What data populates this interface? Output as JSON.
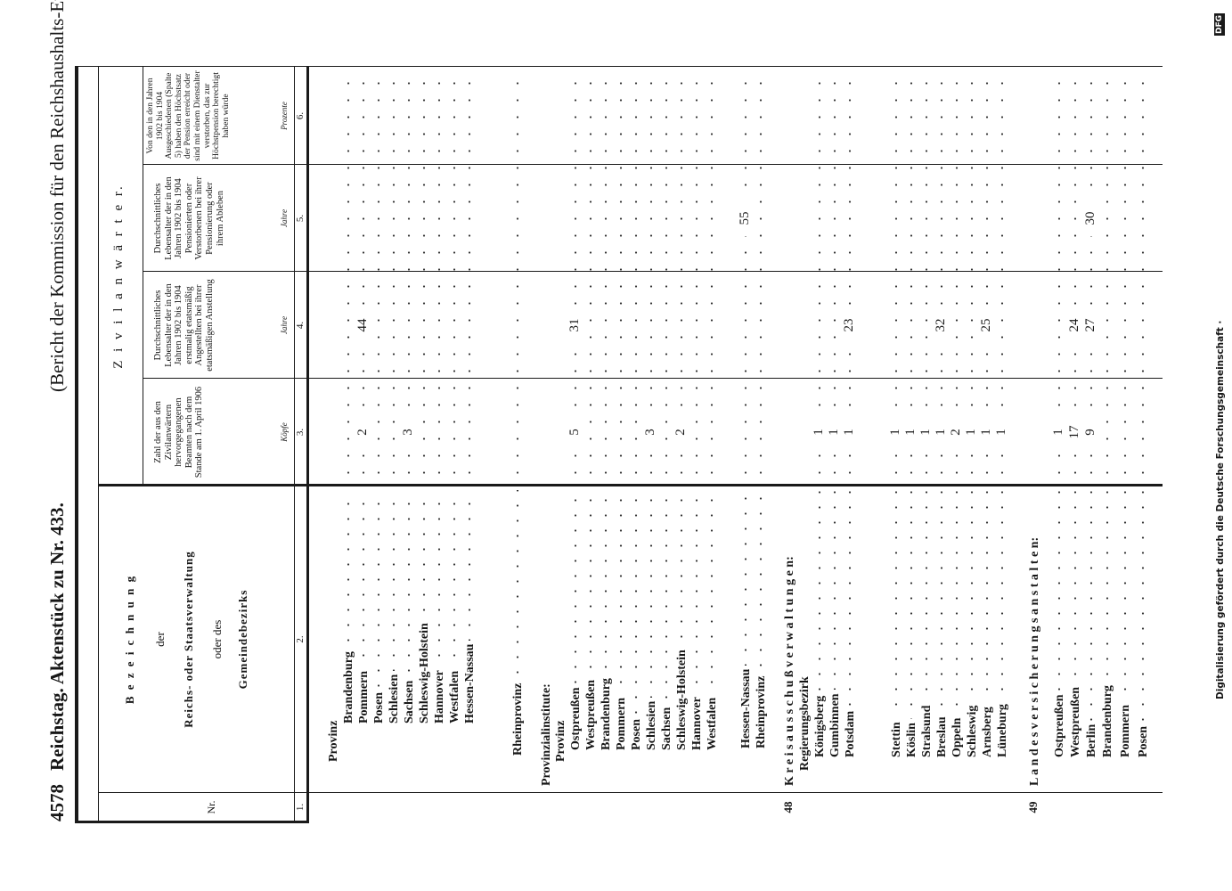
{
  "header": {
    "page_number": "4578",
    "title": "Reichstag.  Aktenstück zu Nr. 433.",
    "subtitle": "(Bericht der Kommission für den Reichshaushalts-Etat.)"
  },
  "table": {
    "headers": {
      "nr": "Nr.",
      "designation": [
        "B e z e i c h n u n g",
        "der",
        "Reichs- oder Staatsverwaltung",
        "oder des",
        "Gemeindebezirks"
      ],
      "group": "Z i v i l a n w ä r t e r.",
      "count": "Zahl der aus den Zivilanwärtern hervorgegangenen Beamten nach dem Stande am 1. April 1906",
      "entry_age": "Durchschnittliches Lebensalter der in den Jahren 1902 bis 1904 erstmalig etatsmäßig Angestellten bei ihrer etatsmäßigen Anstellung",
      "exit_age": "Durchschnittliches Lebensalter der in den Jahren 1902 bis 1904 Pensionierten oder Verstorbenen bei ihrer Pensionierung oder ihrem Ableben",
      "max_pension": "Von den in den Jahren 1902 bis 1904 Ausgeschiedenen (Spalte 5) haben den Höchstsatz der Pension erreicht oder sind mit einem Dienstalter verstorben, das zur Höchstpension berechtigt haben würde"
    },
    "units": {
      "count": "Köpfe",
      "entry_age": "Jahre",
      "exit_age": "Jahre",
      "max_pension": "Prozente"
    },
    "column_numbers": [
      "1.",
      "2.",
      "3.",
      "4.",
      "5.",
      "6."
    ],
    "rows": [
      {
        "label": "Provinz"
      },
      {
        "label": "Brandenburg"
      },
      {
        "label": "Pommern",
        "count": 2,
        "entry_age": 44
      },
      {
        "label": "Posen"
      },
      {
        "label": "Schlesien"
      },
      {
        "label": "Sachsen",
        "count": 3
      },
      {
        "label": "Schleswig-Holstein"
      },
      {
        "label": "Hannover"
      },
      {
        "label": "Westfalen"
      },
      {
        "label": "Hessen-Nassau"
      },
      {
        "label": "Rheinprovinz"
      },
      {
        "label": "Provinzialinstitute:"
      },
      {
        "label": "Provinz"
      },
      {
        "label": "Ostpreußen",
        "count": 5,
        "entry_age": 31
      },
      {
        "label": "Westpreußen"
      },
      {
        "label": "Brandenburg"
      },
      {
        "label": "Pommern"
      },
      {
        "label": "Posen"
      },
      {
        "label": "Schlesien",
        "count": 3
      },
      {
        "label": "Sachsen"
      },
      {
        "label": "Schleswig-Holstein",
        "count": 2
      },
      {
        "label": "Hannover"
      },
      {
        "label": "Westfalen"
      },
      {
        "label": "Hessen-Nassau",
        "exit_age": 55
      },
      {
        "label": "Rheinprovinz"
      },
      {
        "nr": 48,
        "label": "K r e i s a u s s c h u ß v e r w a l t u n g e n:"
      },
      {
        "label": "Regierungsbezirk"
      },
      {
        "label": "Königsberg",
        "count": 1
      },
      {
        "label": "Gumbinnen",
        "count": 1
      },
      {
        "label": "Potsdam",
        "count": 1,
        "entry_age": 23
      },
      {
        "label": "Stettin",
        "count": 1
      },
      {
        "label": "Köslin",
        "count": 1
      },
      {
        "label": "Stralsund",
        "count": 1
      },
      {
        "label": "Breslau",
        "count": 1,
        "entry_age": 32
      },
      {
        "label": "Oppeln",
        "count": 2
      },
      {
        "label": "Schleswig",
        "count": 1
      },
      {
        "label": "Arnsberg",
        "count": 1,
        "entry_age": 25
      },
      {
        "label": "Lüneburg",
        "count": 1
      },
      {
        "nr": 49,
        "label": "L a n d e s v e r s i c h e r u n g s a n s t a l t e n:"
      },
      {
        "label": "Ostpreußen",
        "count": 1
      },
      {
        "label": "Westpreußen",
        "count": 17,
        "entry_age": 24
      },
      {
        "label": "Berlin",
        "count": 9,
        "entry_age": 27,
        "exit_age": 30
      },
      {
        "label": "Brandenburg"
      },
      {
        "label": "Pommern"
      },
      {
        "label": "Posen"
      }
    ]
  },
  "footer": {
    "note": "Digitalisierung gefördert durch die Deutsche Forschungsgemeinschaft ·",
    "logo": "DFG"
  }
}
